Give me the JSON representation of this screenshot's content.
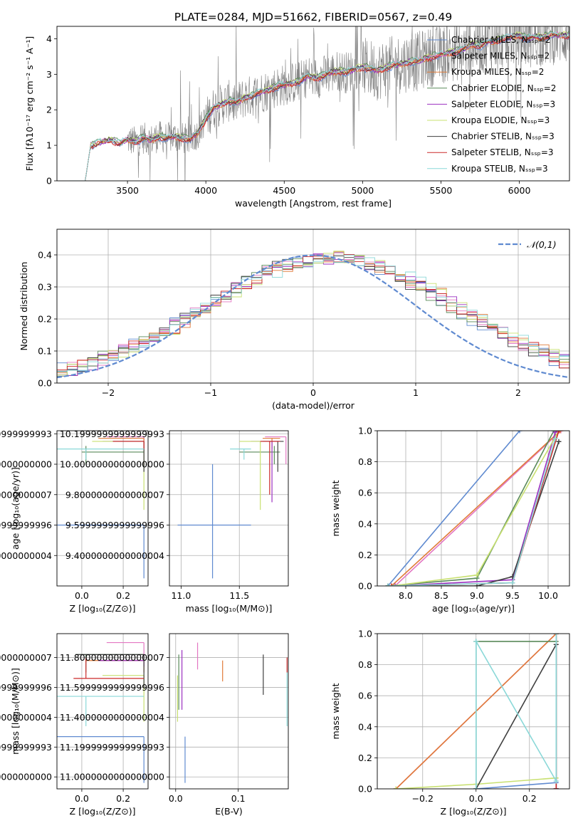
{
  "figure_title": "PLATE=0284, MJD=51662, FIBERID=0567, z=0.49",
  "chart_data": [
    {
      "id": "spectrum",
      "type": "line",
      "xlabel": "wavelength [Angstrom, rest frame]",
      "ylabel": "Flux [fλ10⁻¹⁷ erg cm⁻² s⁻¹ A⁻¹]",
      "xlim": [
        3050,
        6320
      ],
      "ylim": [
        0,
        4.35
      ],
      "xticks": [
        3500,
        4000,
        4500,
        5000,
        5500,
        6000
      ],
      "yticks": [
        0,
        1,
        2,
        3,
        4
      ],
      "grid": false,
      "legend_position": "upper right",
      "data_color": "#808080",
      "data_start": 3500,
      "model_start": 3230,
      "x": [
        3230,
        3265,
        3300,
        3350,
        3400,
        3450,
        3500,
        3550,
        3600,
        3650,
        3700,
        3750,
        3800,
        3850,
        3900,
        3950,
        4000,
        4050,
        4100,
        4150,
        4200,
        4250,
        4300,
        4350,
        4400,
        4450,
        4500,
        4550,
        4600,
        4650,
        4700,
        4750,
        4800,
        4850,
        4900,
        4950,
        5000,
        5050,
        5100,
        5150,
        5200,
        5250,
        5300,
        5350,
        5400,
        5450,
        5500,
        5550,
        5600,
        5650,
        5700,
        5750,
        5800,
        5850,
        5900,
        5950,
        6000,
        6050,
        6100,
        6150,
        6200
      ],
      "model": [
        0.0,
        1.0,
        1.05,
        1.1,
        1.15,
        1.05,
        1.15,
        1.1,
        1.2,
        1.15,
        1.25,
        1.2,
        1.25,
        1.2,
        1.15,
        1.35,
        1.75,
        2.05,
        2.15,
        2.25,
        2.2,
        2.35,
        2.4,
        2.5,
        2.55,
        2.65,
        2.7,
        2.75,
        2.8,
        2.95,
        2.9,
        2.95,
        3.05,
        3.1,
        3.05,
        3.15,
        3.2,
        3.15,
        3.1,
        3.2,
        3.25,
        3.3,
        3.35,
        3.35,
        3.45,
        3.5,
        3.55,
        3.6,
        3.65,
        3.7,
        3.85,
        3.8,
        3.9,
        3.95,
        4.0,
        4.05,
        4.1,
        4.0,
        4.05,
        4.05,
        4.1
      ],
      "series": [
        {
          "name": "Chabrier MILES, Nₛₛₚ=2",
          "color": "#5f8ad0",
          "offset": -0.05
        },
        {
          "name": "Salpeter MILES, Nₛₛₚ=2",
          "color": "#e377c2",
          "offset": 0.02
        },
        {
          "name": "Kroupa MILES, Nₛₛₚ=2",
          "color": "#e07b39",
          "offset": -0.02
        },
        {
          "name": "Chabrier ELODIE, Nₛₛₚ=2",
          "color": "#5a8a5a",
          "offset": 0.05
        },
        {
          "name": "Salpeter ELODIE, Nₛₛₚ=3",
          "color": "#9b30c0",
          "offset": 0.0
        },
        {
          "name": "Kroupa ELODIE, Nₛₛₚ=3",
          "color": "#c8e070",
          "offset": 0.03
        },
        {
          "name": "Chabrier STELIB, Nₛₛₚ=3",
          "color": "#404040",
          "offset": 0.01
        },
        {
          "name": "Salpeter STELIB, Nₛₛₚ=3",
          "color": "#cc2a2a",
          "offset": -0.03
        },
        {
          "name": "Kroupa STELIB, Nₛₛₚ=3",
          "color": "#8ad8d8",
          "offset": 0.04
        }
      ]
    },
    {
      "id": "residuals",
      "type": "line",
      "xlabel": "(data-model)/error",
      "ylabel": "Normed distribution",
      "xlim": [
        -2.5,
        2.5
      ],
      "ylim": [
        0,
        0.48
      ],
      "xticks": [
        -2,
        -1,
        0,
        1,
        2
      ],
      "yticks": [
        0.0,
        0.1,
        0.2,
        0.3,
        0.4
      ],
      "grid": true,
      "legend_position": "upper right",
      "reference": {
        "name": "𝒩(0,1)",
        "color": "#5f8ad0",
        "mean": 0,
        "sigma": 1
      },
      "bin_width": 0.1
    },
    {
      "id": "age-vs-Z",
      "type": "scatter",
      "xlabel": "Z [log₁₀(Z/Z⊙)]",
      "ylabel": "age  [log₁₀(age/yr)]",
      "xlim": [
        -0.12,
        0.32
      ],
      "ylim": [
        9.2,
        10.22
      ],
      "xticks": [
        0.0,
        0.2
      ],
      "yticks": [
        9.4,
        9.6,
        9.8,
        10.0,
        10.2
      ],
      "grid": true,
      "points": [
        {
          "color": "#5f8ad0",
          "x": 0.3,
          "y": 9.6,
          "xlo": -0.12,
          "xhi": 0.3,
          "ylo": 9.25,
          "yhi": 9.6
        },
        {
          "color": "#e377c2",
          "x": 0.3,
          "y": 10.18,
          "xlo": 0.12,
          "xhi": 0.3,
          "ylo": 10.0,
          "yhi": 10.18
        },
        {
          "color": "#e07b39",
          "x": 0.3,
          "y": 10.17,
          "xlo": 0.08,
          "xhi": 0.3,
          "ylo": 10.1,
          "yhi": 10.17
        },
        {
          "color": "#5a8a5a",
          "x": 0.02,
          "y": 10.08,
          "xlo": 0.0,
          "xhi": 0.3,
          "ylo": 10.0,
          "yhi": 10.12
        },
        {
          "color": "#9b30c0",
          "x": 0.3,
          "y": 10.15,
          "xlo": 0.1,
          "xhi": 0.3,
          "ylo": 10.1,
          "yhi": 10.15
        },
        {
          "color": "#c8e070",
          "x": 0.3,
          "y": 10.15,
          "xlo": 0.05,
          "xhi": 0.3,
          "ylo": 9.7,
          "yhi": 10.15
        },
        {
          "color": "#404040",
          "x": 0.3,
          "y": 10.15,
          "xlo": 0.15,
          "xhi": 0.3,
          "ylo": 9.95,
          "yhi": 10.15
        },
        {
          "color": "#cc2a2a",
          "x": 0.3,
          "y": 10.15,
          "xlo": 0.15,
          "xhi": 0.3,
          "ylo": 10.1,
          "yhi": 10.15
        },
        {
          "color": "#8ad8d8",
          "x": 0.02,
          "y": 10.1,
          "xlo": -0.12,
          "xhi": 0.3,
          "ylo": 10.03,
          "yhi": 10.1
        }
      ]
    },
    {
      "id": "age-vs-mass",
      "type": "scatter",
      "xlabel": "mass [log₁₀(M/M⊙)]",
      "ylabel": "",
      "xlim": [
        10.9,
        11.92
      ],
      "ylim": [
        9.2,
        10.22
      ],
      "xticks": [
        11.0,
        11.5
      ],
      "yticks": [
        9.4,
        9.6,
        9.8,
        10.0,
        10.2
      ],
      "grid": true,
      "points": [
        {
          "color": "#5f8ad0",
          "x": 11.27,
          "y": 9.6,
          "xlo": 10.97,
          "xhi": 11.6,
          "ylo": 9.25,
          "yhi": 10.0
        },
        {
          "color": "#e377c2",
          "x": 11.9,
          "y": 10.18,
          "xlo": 11.72,
          "xhi": 11.9,
          "ylo": 10.0,
          "yhi": 10.18
        },
        {
          "color": "#e07b39",
          "x": 11.78,
          "y": 10.17,
          "xlo": 11.7,
          "xhi": 11.85,
          "ylo": 10.1,
          "yhi": 10.17
        },
        {
          "color": "#5a8a5a",
          "x": 11.8,
          "y": 10.08,
          "xlo": 11.5,
          "xhi": 11.85,
          "ylo": 10.0,
          "yhi": 10.12
        },
        {
          "color": "#9b30c0",
          "x": 11.78,
          "y": 10.15,
          "xlo": 11.6,
          "xhi": 11.85,
          "ylo": 9.75,
          "yhi": 10.15
        },
        {
          "color": "#c8e070",
          "x": 11.68,
          "y": 10.15,
          "xlo": 11.5,
          "xhi": 11.75,
          "ylo": 9.7,
          "yhi": 10.15
        },
        {
          "color": "#404040",
          "x": 11.83,
          "y": 10.15,
          "xlo": 11.7,
          "xhi": 11.88,
          "ylo": 9.95,
          "yhi": 10.15
        },
        {
          "color": "#cc2a2a",
          "x": 11.76,
          "y": 10.15,
          "xlo": 11.68,
          "xhi": 11.85,
          "ylo": 9.8,
          "yhi": 10.15
        },
        {
          "color": "#8ad8d8",
          "x": 11.54,
          "y": 10.1,
          "xlo": 11.42,
          "xhi": 11.6,
          "ylo": 10.03,
          "yhi": 10.1
        }
      ]
    },
    {
      "id": "mass-weight-vs-age",
      "type": "line",
      "xlabel": "age  [log₁₀(age/yr)]",
      "ylabel": "mass weight",
      "xlim": [
        7.6,
        10.3
      ],
      "ylim": [
        0,
        1.0
      ],
      "xticks": [
        8.0,
        8.5,
        9.0,
        9.5,
        10.0
      ],
      "yticks": [
        0.0,
        0.2,
        0.4,
        0.6,
        0.8,
        1.0
      ],
      "grid": true,
      "series": [
        {
          "color": "#5f8ad0",
          "x": [
            7.75,
            9.6
          ],
          "y": [
            0.0,
            1.0
          ]
        },
        {
          "color": "#e377c2",
          "x": [
            7.85,
            10.18
          ],
          "y": [
            0.0,
            1.0
          ]
        },
        {
          "color": "#e07b39",
          "x": [
            7.8,
            10.17
          ],
          "y": [
            0.0,
            1.0
          ]
        },
        {
          "color": "#5a8a5a",
          "x": [
            7.75,
            9.0,
            10.08
          ],
          "y": [
            0.0,
            0.05,
            1.0
          ]
        },
        {
          "color": "#9b30c0",
          "x": [
            7.85,
            9.5,
            10.1,
            10.15
          ],
          "y": [
            0.0,
            0.04,
            0.99,
            1.0
          ]
        },
        {
          "color": "#c8e070",
          "x": [
            7.8,
            9.0,
            10.15
          ],
          "y": [
            0.0,
            0.07,
            1.0
          ]
        },
        {
          "color": "#404040",
          "x": [
            7.75,
            9.0,
            9.5,
            10.15
          ],
          "y": [
            0.0,
            0.0,
            0.06,
            0.93
          ]
        },
        {
          "color": "#cc2a2a",
          "x": [
            7.8,
            9.5,
            10.15
          ],
          "y": [
            0.0,
            0.02,
            1.0
          ]
        },
        {
          "color": "#8ad8d8",
          "x": [
            7.75,
            9.5,
            10.1
          ],
          "y": [
            0.0,
            0.02,
            0.95
          ]
        }
      ]
    },
    {
      "id": "mass-vs-Z",
      "type": "scatter",
      "xlabel": "Z [log₁₀(Z/Z⊙)]",
      "ylabel": "mass [log₁₀(M/M⊙)]",
      "xlim": [
        -0.12,
        0.32
      ],
      "ylim": [
        10.92,
        11.96
      ],
      "xticks": [
        0.0,
        0.2
      ],
      "yticks": [
        11.0,
        11.2,
        11.4,
        11.6,
        11.8
      ],
      "grid": true,
      "points": [
        {
          "color": "#5f8ad0",
          "x": 0.3,
          "y": 11.27,
          "xlo": -0.12,
          "xhi": 0.3,
          "ylo": 10.96,
          "yhi": 11.27
        },
        {
          "color": "#e377c2",
          "x": 0.3,
          "y": 11.9,
          "xlo": 0.12,
          "xhi": 0.3,
          "ylo": 11.8,
          "yhi": 11.9
        },
        {
          "color": "#e07b39",
          "x": 0.3,
          "y": 11.78,
          "xlo": 0.02,
          "xhi": 0.3,
          "ylo": 11.7,
          "yhi": 11.78
        },
        {
          "color": "#5a8a5a",
          "x": 0.02,
          "y": 11.82,
          "xlo": -0.03,
          "xhi": 0.3,
          "ylo": 11.7,
          "yhi": 11.82
        },
        {
          "color": "#9b30c0",
          "x": 0.3,
          "y": 11.78,
          "xlo": 0.08,
          "xhi": 0.3,
          "ylo": 11.74,
          "yhi": 11.78
        },
        {
          "color": "#c8e070",
          "x": 0.3,
          "y": 11.68,
          "xlo": 0.1,
          "xhi": 0.3,
          "ylo": 11.37,
          "yhi": 11.68
        },
        {
          "color": "#404040",
          "x": 0.3,
          "y": 11.82,
          "xlo": -0.03,
          "xhi": 0.3,
          "ylo": 11.6,
          "yhi": 11.82
        },
        {
          "color": "#cc2a2a",
          "x": 0.02,
          "y": 11.66,
          "xlo": -0.04,
          "xhi": 0.3,
          "ylo": 11.66,
          "yhi": 11.8
        },
        {
          "color": "#8ad8d8",
          "x": 0.02,
          "y": 11.54,
          "xlo": -0.12,
          "xhi": 0.3,
          "ylo": 11.34,
          "yhi": 11.54
        }
      ]
    },
    {
      "id": "mass-vs-EBV",
      "type": "scatter",
      "xlabel": "E(B-V)",
      "ylabel": "",
      "xlim": [
        -0.01,
        0.18
      ],
      "ylim": [
        10.92,
        11.96
      ],
      "xticks": [
        0.0,
        0.1
      ],
      "yticks": [
        11.0,
        11.2,
        11.4,
        11.6,
        11.8
      ],
      "grid": true,
      "points": [
        {
          "color": "#5f8ad0",
          "x": 0.015,
          "y": 11.27,
          "ylo": 10.96,
          "yhi": 11.27
        },
        {
          "color": "#e377c2",
          "x": 0.035,
          "y": 11.9,
          "ylo": 11.72,
          "yhi": 11.9
        },
        {
          "color": "#e07b39",
          "x": 0.075,
          "y": 11.78,
          "ylo": 11.64,
          "yhi": 11.78
        },
        {
          "color": "#5a8a5a",
          "x": 0.005,
          "y": 11.82,
          "ylo": 11.45,
          "yhi": 11.82
        },
        {
          "color": "#9b30c0",
          "x": 0.01,
          "y": 11.78,
          "ylo": 11.45,
          "yhi": 11.85
        },
        {
          "color": "#c8e070",
          "x": 0.003,
          "y": 11.68,
          "ylo": 11.37,
          "yhi": 11.68
        },
        {
          "color": "#404040",
          "x": 0.14,
          "y": 11.82,
          "ylo": 11.55,
          "yhi": 11.82
        },
        {
          "color": "#cc2a2a",
          "x": 0.178,
          "y": 11.8,
          "ylo": 11.7,
          "yhi": 11.8
        },
        {
          "color": "#8ad8d8",
          "x": 0.178,
          "y": 11.6,
          "ylo": 11.34,
          "yhi": 11.7
        }
      ]
    },
    {
      "id": "mass-weight-vs-Z",
      "type": "line",
      "xlabel": "Z [log₁₀(Z/Z⊙)]",
      "ylabel": "mass weight",
      "xlim": [
        -0.37,
        0.35
      ],
      "ylim": [
        0,
        1.0
      ],
      "xticks": [
        -0.2,
        0.0,
        0.2
      ],
      "yticks": [
        0.0,
        0.2,
        0.4,
        0.6,
        0.8,
        1.0
      ],
      "grid": true,
      "series": [
        {
          "color": "#5f8ad0",
          "x": [
            0.0,
            0.3,
            0.3
          ],
          "y": [
            0.0,
            0.04,
            1.0
          ]
        },
        {
          "color": "#e377c2",
          "x": [
            -0.3,
            0.3
          ],
          "y": [
            0.0,
            1.0
          ]
        },
        {
          "color": "#e07b39",
          "x": [
            -0.3,
            0.3
          ],
          "y": [
            0.0,
            1.0
          ]
        },
        {
          "color": "#5a8a5a",
          "x": [
            0.0,
            0.0,
            0.3,
            0.3
          ],
          "y": [
            0.0,
            0.95,
            0.95,
            1.0
          ]
        },
        {
          "color": "#9b30c0",
          "x": [
            0.3,
            0.3
          ],
          "y": [
            0.0,
            1.0
          ]
        },
        {
          "color": "#c8e070",
          "x": [
            -0.3,
            0.0,
            0.3,
            0.3
          ],
          "y": [
            0.0,
            0.03,
            0.07,
            1.0
          ]
        },
        {
          "color": "#404040",
          "x": [
            0.0,
            0.3,
            0.3
          ],
          "y": [
            0.0,
            0.93,
            0.0
          ]
        },
        {
          "color": "#cc2a2a",
          "x": [
            0.3,
            0.3
          ],
          "y": [
            0.0,
            1.0
          ]
        },
        {
          "color": "#8ad8d8",
          "x": [
            0.0,
            0.0,
            0.3,
            0.3
          ],
          "y": [
            0.0,
            0.95,
            0.05,
            1.0
          ]
        }
      ]
    }
  ]
}
